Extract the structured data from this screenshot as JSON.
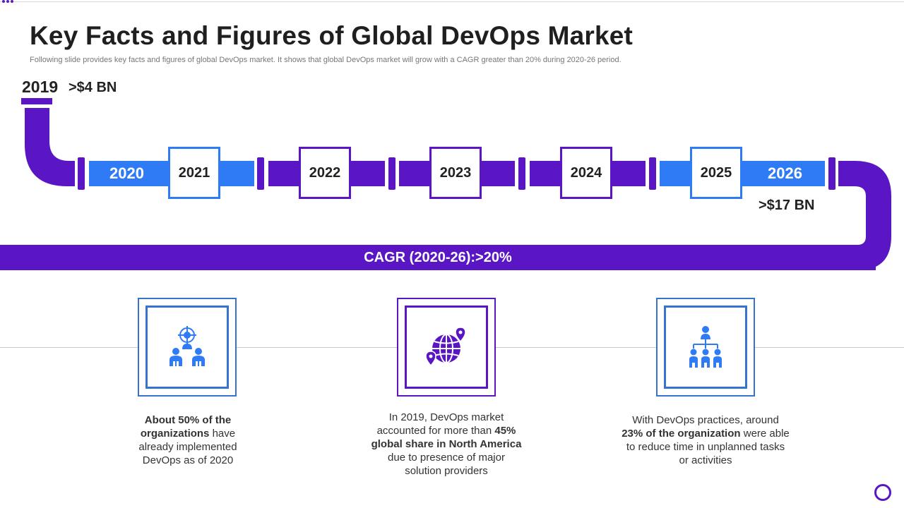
{
  "header": {
    "title": "Key Facts and Figures of Global DevOps Market",
    "subtitle": "Following slide provides key facts and figures of global DevOps market. It shows that global DevOps market will grow with a CAGR greater than 20% during 2020-26 period."
  },
  "timeline": {
    "start_year": "2019",
    "start_value": ">$4 BN",
    "end_value": ">$17 BN",
    "cagr": "CAGR (2020-26):>20%",
    "pipe_years": {
      "y2020": "2020",
      "y2026": "2026"
    },
    "boxes": [
      "2021",
      "2022",
      "2023",
      "2024",
      "2025"
    ]
  },
  "facts": [
    {
      "icon": "target-team-icon",
      "bold1": "About 50% of the organizations",
      "text1": " have already implemented DevOps as of 2020"
    },
    {
      "icon": "globe-location-icon",
      "text1": "In 2019, DevOps market accounted for more than ",
      "bold1": "45% global share in North America",
      "text2": " due to presence of major solution providers"
    },
    {
      "icon": "org-hierarchy-icon",
      "text1": "With DevOps practices, around ",
      "bold1": "23% of the organization",
      "text2": " were able to reduce time in unplanned tasks or activities"
    }
  ],
  "colors": {
    "purple": "#5a16c4",
    "blue": "#2f7bf5",
    "card_blue": "#3673cf"
  }
}
